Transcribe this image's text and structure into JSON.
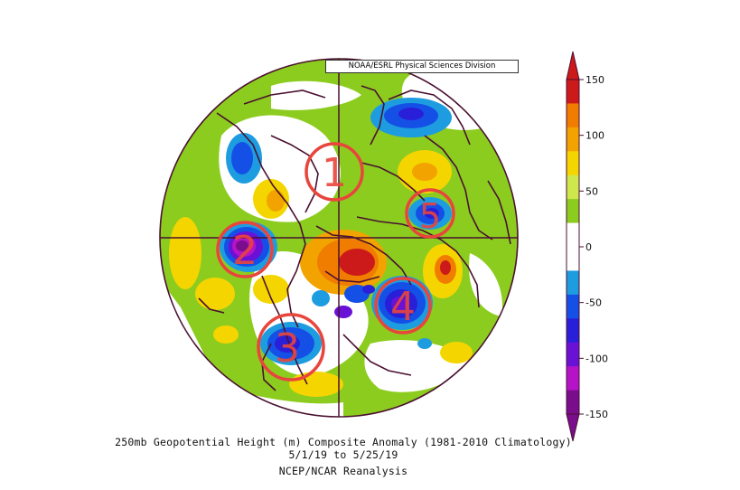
{
  "source_label": "NOAA/ESRL Physical Sciences Division",
  "caption": {
    "line1": "250mb Geopotential Height (m) Composite Anomaly (1981-2010 Climatology)",
    "line2": "5/1/19  to 5/25/19",
    "line3": "NCEP/NCAR Reanalysis"
  },
  "colorbar": {
    "ticks": [
      "150",
      "100",
      "50",
      "0",
      "-50",
      "-100",
      "-150"
    ],
    "colors": [
      "#cc1a1a",
      "#f07c00",
      "#f2a300",
      "#f5d500",
      "#cde74c",
      "#8ccc1f",
      "#ffffff",
      "#ffffff",
      "#1e9ce0",
      "#1550e6",
      "#2a1fd9",
      "#6a11d6",
      "#b413c8",
      "#7a0d8c"
    ]
  },
  "markers": [
    {
      "label": "1"
    },
    {
      "label": "2"
    },
    {
      "label": "3"
    },
    {
      "label": "4"
    },
    {
      "label": "5"
    }
  ]
}
